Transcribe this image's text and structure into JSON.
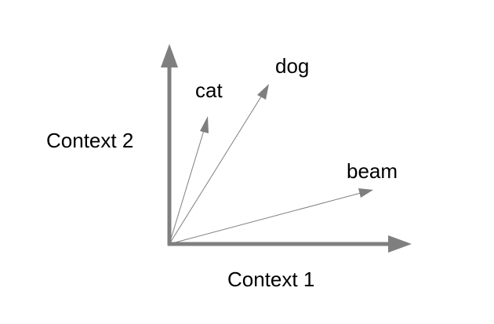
{
  "diagram": {
    "axes": {
      "x_label": "Context 1",
      "y_label": "Context 2",
      "color": "#7f7f7f"
    },
    "vectors": [
      {
        "word": "cat",
        "color": "#7f7f7f"
      },
      {
        "word": "dog",
        "color": "#7f7f7f"
      },
      {
        "word": "beam",
        "color": "#7f7f7f"
      }
    ]
  }
}
